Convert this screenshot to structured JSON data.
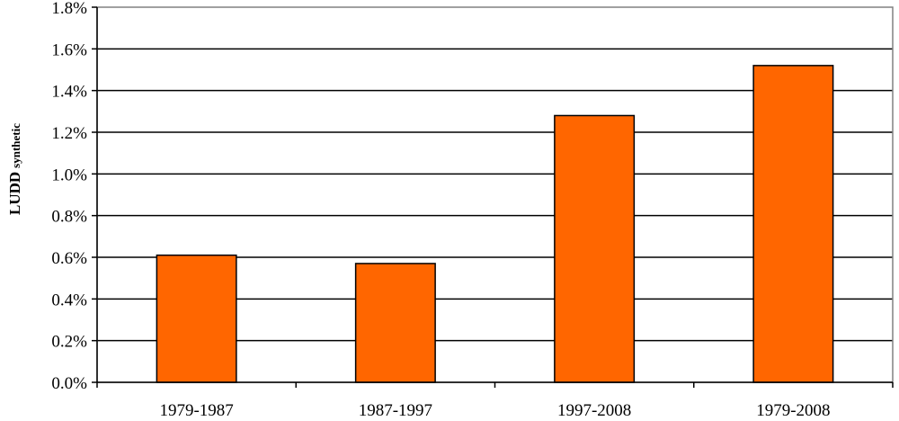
{
  "chart_data": {
    "type": "bar",
    "categories": [
      "1979-1987",
      "1987-1997",
      "1997-2008",
      "1979-2008"
    ],
    "values": [
      0.0061,
      0.0057,
      0.0128,
      0.0152
    ],
    "ylim": [
      0,
      0.018
    ],
    "yticks": [
      "0.0%",
      "0.2%",
      "0.4%",
      "0.6%",
      "0.8%",
      "1.0%",
      "1.2%",
      "1.4%",
      "1.6%",
      "1.8%"
    ],
    "ylabel": "LUDD",
    "ylabel_subscript": "synthetic",
    "xlabel": "",
    "title": "",
    "grid": true,
    "bar_color": "#FF6600",
    "bar_edge_color": "#000000"
  }
}
